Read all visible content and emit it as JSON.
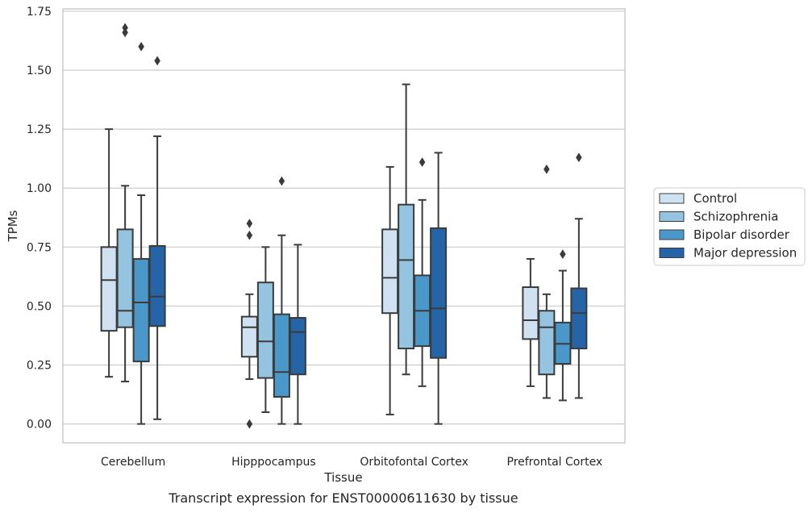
{
  "caption": "Transcript expression for ENST00000611630 by tissue",
  "chart_data": {
    "type": "box",
    "title": "",
    "xlabel": "Tissue",
    "ylabel": "TPMs",
    "ylim": [
      -0.08,
      1.76
    ],
    "yticks": [
      "0.00",
      "0.25",
      "0.50",
      "0.75",
      "1.00",
      "1.25",
      "1.50",
      "1.75"
    ],
    "ytick_values": [
      0,
      0.25,
      0.5,
      0.75,
      1.0,
      1.25,
      1.5,
      1.75
    ],
    "grid": "horizontal",
    "legend_position": "right",
    "categories": [
      "Cerebellum",
      "Hipppocampus",
      "Orbitofontal Cortex",
      "Prefrontal Cortex"
    ],
    "series": [
      {
        "name": "Control",
        "color": "#d0e1f2",
        "boxes": [
          {
            "whislo": 0.2,
            "q1": 0.395,
            "med": 0.61,
            "q3": 0.75,
            "whishi": 1.25,
            "fliers": []
          },
          {
            "whislo": 0.19,
            "q1": 0.285,
            "med": 0.41,
            "q3": 0.455,
            "whishi": 0.55,
            "fliers": [
              0.85,
              0.8,
              0.0
            ]
          },
          {
            "whislo": 0.04,
            "q1": 0.47,
            "med": 0.62,
            "q3": 0.825,
            "whishi": 1.09,
            "fliers": []
          },
          {
            "whislo": 0.16,
            "q1": 0.36,
            "med": 0.44,
            "q3": 0.58,
            "whishi": 0.7,
            "fliers": []
          }
        ]
      },
      {
        "name": "Schizophrenia",
        "color": "#94c4df",
        "boxes": [
          {
            "whislo": 0.18,
            "q1": 0.41,
            "med": 0.48,
            "q3": 0.825,
            "whishi": 1.01,
            "fliers": [
              1.68,
              1.66
            ]
          },
          {
            "whislo": 0.05,
            "q1": 0.195,
            "med": 0.35,
            "q3": 0.6,
            "whishi": 0.75,
            "fliers": []
          },
          {
            "whislo": 0.21,
            "q1": 0.32,
            "med": 0.695,
            "q3": 0.93,
            "whishi": 1.44,
            "fliers": []
          },
          {
            "whislo": 0.11,
            "q1": 0.21,
            "med": 0.41,
            "q3": 0.48,
            "whishi": 0.55,
            "fliers": [
              1.08
            ]
          }
        ]
      },
      {
        "name": "Bipolar disorder",
        "color": "#4a98c9",
        "boxes": [
          {
            "whislo": 0.0,
            "q1": 0.265,
            "med": 0.515,
            "q3": 0.7,
            "whishi": 0.97,
            "fliers": [
              1.6
            ]
          },
          {
            "whislo": 0.0,
            "q1": 0.115,
            "med": 0.22,
            "q3": 0.465,
            "whishi": 0.8,
            "fliers": [
              1.03
            ]
          },
          {
            "whislo": 0.16,
            "q1": 0.33,
            "med": 0.48,
            "q3": 0.63,
            "whishi": 0.95,
            "fliers": [
              1.11
            ]
          },
          {
            "whislo": 0.1,
            "q1": 0.255,
            "med": 0.34,
            "q3": 0.43,
            "whishi": 0.65,
            "fliers": [
              0.72
            ]
          }
        ]
      },
      {
        "name": "Major depression",
        "color": "#2565a7",
        "boxes": [
          {
            "whislo": 0.02,
            "q1": 0.415,
            "med": 0.54,
            "q3": 0.755,
            "whishi": 1.22,
            "fliers": [
              1.54
            ]
          },
          {
            "whislo": 0.0,
            "q1": 0.21,
            "med": 0.39,
            "q3": 0.45,
            "whishi": 0.76,
            "fliers": []
          },
          {
            "whislo": 0.0,
            "q1": 0.28,
            "med": 0.49,
            "q3": 0.83,
            "whishi": 1.15,
            "fliers": []
          },
          {
            "whislo": 0.11,
            "q1": 0.32,
            "med": 0.47,
            "q3": 0.575,
            "whishi": 0.87,
            "fliers": [
              1.13
            ]
          }
        ]
      }
    ]
  }
}
